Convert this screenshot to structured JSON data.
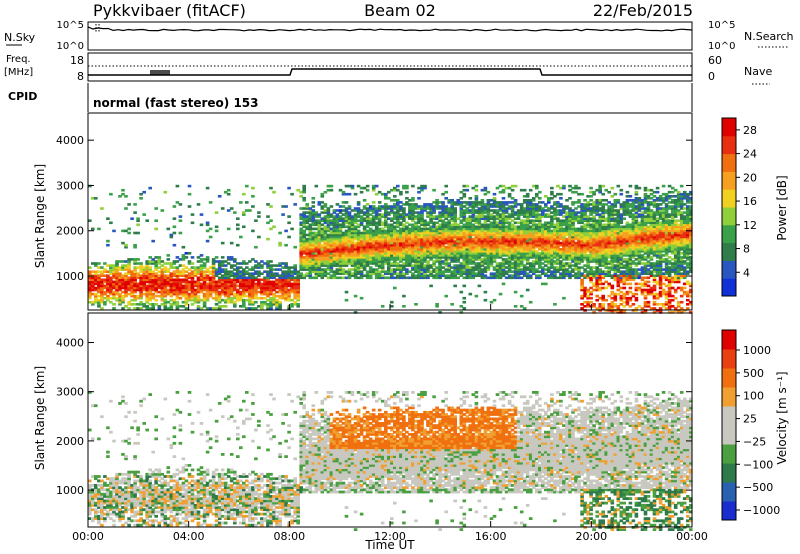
{
  "header": {
    "radar": "Pykkvibaer (fitACF)",
    "beam": "Beam 02",
    "date": "22/Feb/2015"
  },
  "panels": {
    "nsky": {
      "label": "N.Sky",
      "ticks": [
        "10^5",
        "10^0"
      ],
      "right_label": "N.Search",
      "right_ticks": [
        "10^5",
        "10^0"
      ]
    },
    "freq": {
      "label_line1": "Freq.",
      "label_line2": "[MHz]",
      "ticks": [
        "18",
        "8"
      ],
      "right_label": "Nave",
      "right_ticks": [
        "60",
        "0"
      ]
    },
    "cpid": {
      "label": "CPID",
      "text": "normal (fast stereo) 153"
    }
  },
  "colors": {
    "power_scale": [
      "#1030d8",
      "#2a56c0",
      "#2e7d4a",
      "#3aa04a",
      "#8fcf3a",
      "#f0d020",
      "#f5a020",
      "#f07010",
      "#e83010",
      "#e00000"
    ],
    "velocity_scale": [
      "#1a2ed0",
      "#2a60b0",
      "#2e7a4a",
      "#4aa040",
      "#c8c8c0",
      "#c8c8c0",
      "#f0a030",
      "#f07010",
      "#e84010",
      "#e00000"
    ],
    "ground_scatter": "#c8c8c0"
  },
  "chart_data": [
    {
      "type": "heatmap",
      "name": "power",
      "ylabel": "Slant Range [km]",
      "yticks": [
        "1000",
        "2000",
        "3000",
        "4000"
      ],
      "ylim": [
        250,
        4600
      ],
      "xlim_hours": [
        0,
        24
      ],
      "colorbar": {
        "label": "Power [dB]",
        "ticks": [
          "4",
          "8",
          "12",
          "16",
          "20",
          "24",
          "28"
        ],
        "range": [
          0,
          30
        ]
      }
    },
    {
      "type": "heatmap",
      "name": "velocity",
      "ylabel": "Slant Range [km]",
      "yticks": [
        "1000",
        "2000",
        "3000",
        "4000"
      ],
      "ylim": [
        250,
        4600
      ],
      "xlim_hours": [
        0,
        24
      ],
      "colorbar": {
        "label": "Velocity [m s⁻¹]",
        "ticks": [
          "1000",
          "500",
          "100",
          "25",
          "−25",
          "−100",
          "−500",
          "−1000"
        ]
      }
    }
  ],
  "xaxis": {
    "ticks": [
      "00:00",
      "04:00",
      "08:00",
      "12:00",
      "16:00",
      "20:00",
      "00:00"
    ],
    "label": "Time UT"
  }
}
